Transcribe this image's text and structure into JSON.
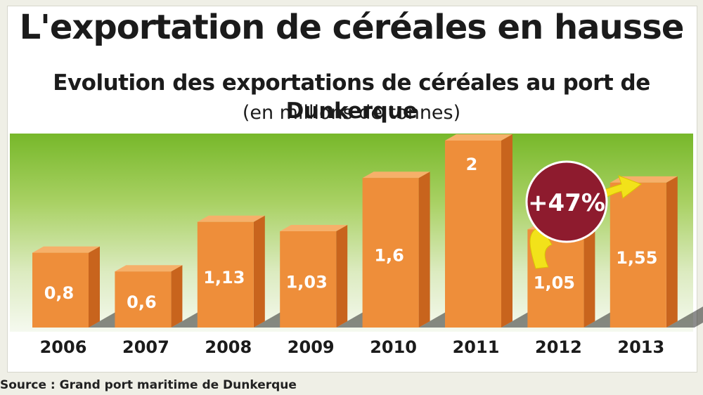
{
  "header": {
    "title": "L'exportation de céréales en hausse",
    "subtitle": "Evolution des exportations de céréales au port de Dunkerque",
    "unit": "(en millions de tonnes)"
  },
  "footer": {
    "source": "Source : Grand port maritime de Dunkerque"
  },
  "annotation": {
    "label": "+47%",
    "color": "#8e1b2e",
    "arrow_color": "#f2e21a"
  },
  "colors": {
    "bar_front": "#ee8e3a",
    "bar_side": "#c8641d",
    "bar_top": "#f6b06a",
    "background_top": "#77b82a",
    "background_bottom": "#f5f9ef"
  },
  "chart_data": {
    "type": "bar",
    "title": "L'exportation de céréales en hausse",
    "subtitle": "Evolution des exportations de céréales au port de Dunkerque",
    "ylabel": "(en millions de tonnes)",
    "categories": [
      "2006",
      "2007",
      "2008",
      "2009",
      "2010",
      "2011",
      "2012",
      "2013"
    ],
    "values": [
      0.8,
      0.6,
      1.13,
      1.03,
      1.6,
      2,
      1.05,
      1.55
    ],
    "value_labels": [
      "0,8",
      "0,6",
      "1,13",
      "1,03",
      "1,6",
      "2",
      "1,05",
      "1,55"
    ],
    "ylim": [
      0,
      2
    ],
    "grid": false,
    "legend": "none",
    "annotation": "+47%"
  }
}
